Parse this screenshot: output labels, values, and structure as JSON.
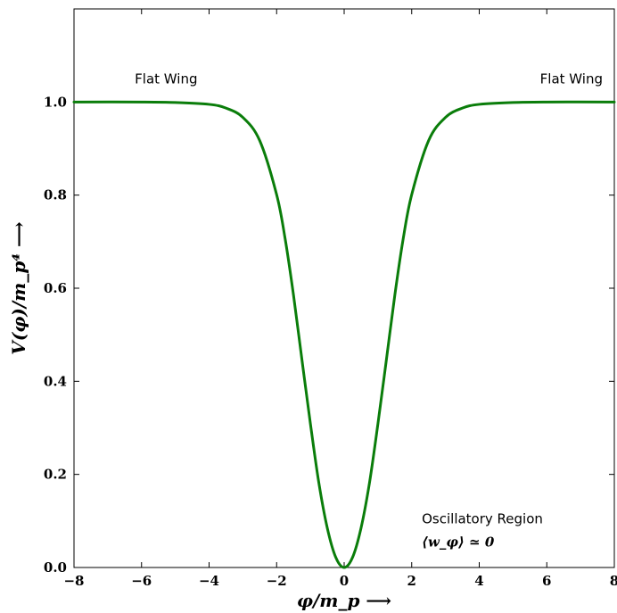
{
  "chart_data": {
    "type": "line",
    "title": "",
    "xlabel": "φ/m_p ⟶",
    "ylabel": "V(φ)/m_p⁴ ⟶",
    "xlim": [
      -8,
      8
    ],
    "ylim": [
      0,
      1.2
    ],
    "x_ticks": [
      -8,
      -6,
      -4,
      -2,
      0,
      2,
      4,
      6,
      8
    ],
    "x_tick_labels": [
      "−8",
      "−6",
      "−4",
      "−2",
      "0",
      "2",
      "4",
      "6",
      "8"
    ],
    "y_ticks": [
      0.0,
      0.2,
      0.4,
      0.6,
      0.8,
      1.0
    ],
    "y_tick_labels": [
      "0.0",
      "0.2",
      "0.4",
      "0.6",
      "0.8",
      "1.0"
    ],
    "grid": false,
    "legend": "none",
    "series": [
      {
        "color": "#0a7d0a",
        "x": [
          -8,
          -6,
          -5,
          -4,
          -3.5,
          -3,
          -2.5,
          -2,
          -1.75,
          -1.5,
          -1.25,
          -1,
          -0.75,
          -0.5,
          -0.25,
          0,
          0.25,
          0.5,
          0.75,
          1,
          1.25,
          1.5,
          1.75,
          2,
          2.5,
          3,
          3.5,
          4,
          5,
          6,
          8
        ],
        "y": [
          1.0,
          1.0,
          0.999,
          0.995,
          0.987,
          0.967,
          0.917,
          0.801,
          0.707,
          0.585,
          0.446,
          0.309,
          0.182,
          0.085,
          0.022,
          0.0,
          0.022,
          0.085,
          0.182,
          0.309,
          0.446,
          0.585,
          0.707,
          0.801,
          0.917,
          0.967,
          0.987,
          0.995,
          0.999,
          1.0,
          1.0
        ]
      }
    ],
    "annotations": [
      {
        "text": "Flat Wing",
        "x": -6.2,
        "y": 1.04
      },
      {
        "text": "Flat Wing",
        "x": 5.8,
        "y": 1.04
      },
      {
        "text": "Oscillatory Region",
        "x": 2.3,
        "y": 0.095
      },
      {
        "text": "⟨w_φ⟩ ≃ 0",
        "x": 2.3,
        "y": 0.045
      }
    ]
  }
}
